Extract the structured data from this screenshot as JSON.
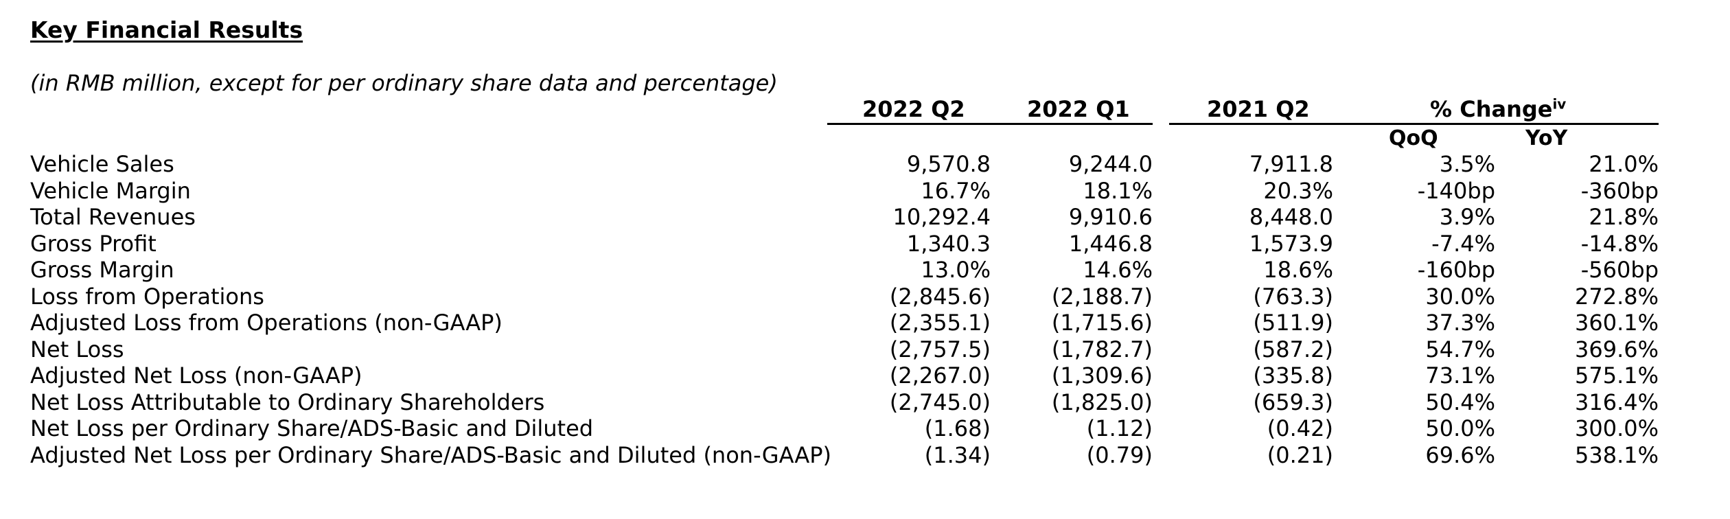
{
  "title": "Key Financial Results",
  "subtitle": "(in RMB million, except for per ordinary share data and percentage)",
  "columns": {
    "col1": "2022 Q2",
    "col2": "2022 Q1",
    "col3": "2021 Q2",
    "change": "% Change",
    "change_sup": "iv",
    "qoq": "QoQ",
    "yoy": "YoY"
  },
  "rows": [
    {
      "label": "Vehicle Sales",
      "q2_2022": "9,570.8",
      "q1_2022": "9,244.0",
      "q2_2021": "7,911.8",
      "qoq": "3.5%",
      "yoy": "21.0%"
    },
    {
      "label": "Vehicle Margin",
      "q2_2022": "16.7%",
      "q1_2022": "18.1%",
      "q2_2021": "20.3%",
      "qoq": "-140bp",
      "yoy": "-360bp"
    },
    {
      "label": "Total Revenues",
      "q2_2022": "10,292.4",
      "q1_2022": "9,910.6",
      "q2_2021": "8,448.0",
      "qoq": "3.9%",
      "yoy": "21.8%"
    },
    {
      "label": "Gross Profit",
      "q2_2022": "1,340.3",
      "q1_2022": "1,446.8",
      "q2_2021": "1,573.9",
      "qoq": "-7.4%",
      "yoy": "-14.8%"
    },
    {
      "label": "Gross Margin",
      "q2_2022": "13.0%",
      "q1_2022": "14.6%",
      "q2_2021": "18.6%",
      "qoq": "-160bp",
      "yoy": "-560bp"
    },
    {
      "label": "Loss from Operations",
      "q2_2022": "(2,845.6)",
      "q1_2022": "(2,188.7)",
      "q2_2021": "(763.3)",
      "qoq": "30.0%",
      "yoy": "272.8%"
    },
    {
      "label": "Adjusted Loss from Operations (non-GAAP)",
      "q2_2022": "(2,355.1)",
      "q1_2022": "(1,715.6)",
      "q2_2021": "(511.9)",
      "qoq": "37.3%",
      "yoy": "360.1%"
    },
    {
      "label": "Net Loss",
      "q2_2022": "(2,757.5)",
      "q1_2022": "(1,782.7)",
      "q2_2021": "(587.2)",
      "qoq": "54.7%",
      "yoy": "369.6%"
    },
    {
      "label": "Adjusted Net Loss (non-GAAP)",
      "q2_2022": "(2,267.0)",
      "q1_2022": "(1,309.6)",
      "q2_2021": "(335.8)",
      "qoq": "73.1%",
      "yoy": "575.1%"
    },
    {
      "label": "Net Loss Attributable to Ordinary Shareholders",
      "q2_2022": "(2,745.0)",
      "q1_2022": "(1,825.0)",
      "q2_2021": "(659.3)",
      "qoq": "50.4%",
      "yoy": "316.4%"
    },
    {
      "label": "Net Loss per Ordinary Share/ADS-Basic and Diluted",
      "q2_2022": "(1.68)",
      "q1_2022": "(1.12)",
      "q2_2021": "(0.42)",
      "qoq": "50.0%",
      "yoy": "300.0%"
    },
    {
      "label": "Adjusted Net Loss per Ordinary Share/ADS-Basic and Diluted (non-GAAP)",
      "q2_2022": "(1.34)",
      "q1_2022": "(0.79)",
      "q2_2021": "(0.21)",
      "qoq": "69.6%",
      "yoy": "538.1%"
    }
  ]
}
